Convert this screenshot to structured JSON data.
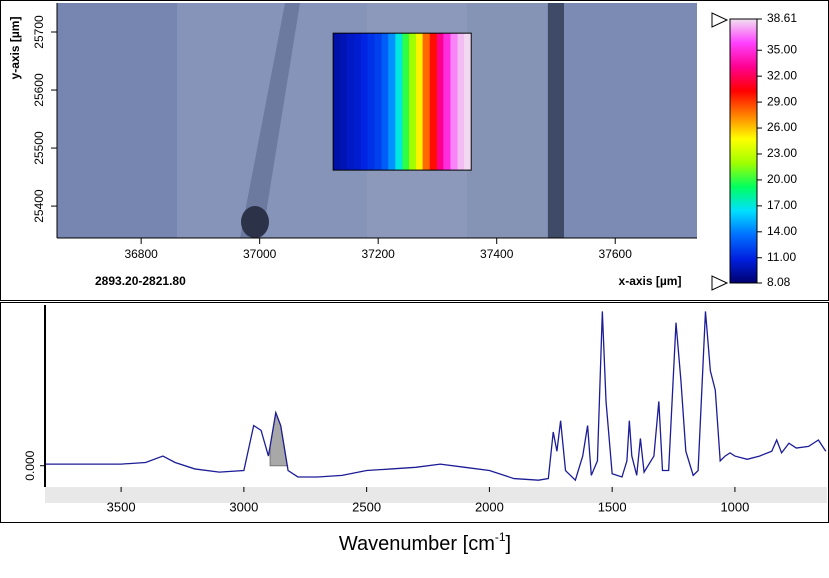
{
  "chart_data": [
    {
      "type": "heatmap",
      "xlabel": "x-axis [µm]",
      "ylabel": "y-axis [µm]",
      "annotation": "2893.20-2821.80",
      "xlim": [
        36658,
        37738
      ],
      "xticks": [
        36800,
        37000,
        37200,
        37400,
        37600
      ],
      "ylim": [
        25345,
        25750
      ],
      "yticks": [
        25400,
        25500,
        25600,
        25700
      ],
      "x_edges": [
        37124,
        37136,
        37147,
        37159,
        37171,
        37182,
        37194,
        37206,
        37217,
        37229,
        37241,
        37252,
        37264,
        37275,
        37287,
        37299,
        37310,
        37322,
        37334,
        37345,
        37357
      ],
      "y_range": [
        25462,
        25698
      ],
      "values": [
        9.5,
        9.8,
        10.2,
        10.5,
        11,
        11.5,
        12,
        13,
        14.5,
        17,
        20,
        22,
        25,
        28,
        30,
        33,
        35,
        37,
        38,
        38.5
      ],
      "colorbar": {
        "lim": [
          8.08,
          38.61
        ],
        "ticks": [
          8.08,
          {
            "value": 11,
            "label": "11.00"
          },
          {
            "value": 14,
            "label": "14.00"
          },
          {
            "value": 17,
            "label": "17.00"
          },
          {
            "value": 20,
            "label": "20.00"
          },
          {
            "value": 23,
            "label": "23.00"
          },
          {
            "value": 26,
            "label": "26.00"
          },
          {
            "value": 29,
            "label": "29.00"
          },
          {
            "value": 32,
            "label": "32.00"
          },
          {
            "value": 35,
            "label": "35.00"
          },
          38.61
        ],
        "colors": [
          "#00006e",
          "#0020e0",
          "#0070ff",
          "#00e0ff",
          "#00ff60",
          "#a0ff00",
          "#ffff00",
          "#ff8000",
          "#ff0000",
          "#ff0090",
          "#ff40ff",
          "#f0e0f0"
        ]
      }
    },
    {
      "type": "line",
      "xlabel": "Wavenumber [cm",
      "xlabel_sup": "-1",
      "xlabel_close": "]",
      "xlim": [
        3810,
        625
      ],
      "xticks": [
        3500,
        3000,
        2500,
        2000,
        1500,
        1000
      ],
      "ylim": [
        -0.12,
        1.0
      ],
      "yticks": [
        {
          "value": 0,
          "label": "0.000"
        }
      ],
      "highlight": [
        2893.2,
        2821.8
      ],
      "x": [
        3810,
        3500,
        3400,
        3330,
        3280,
        3200,
        3100,
        3000,
        2960,
        2930,
        2900,
        2870,
        2850,
        2820,
        2780,
        2700,
        2600,
        2500,
        2400,
        2300,
        2200,
        2100,
        2000,
        1900,
        1800,
        1760,
        1740,
        1725,
        1710,
        1690,
        1650,
        1620,
        1600,
        1585,
        1560,
        1540,
        1525,
        1500,
        1460,
        1440,
        1430,
        1420,
        1400,
        1385,
        1370,
        1330,
        1310,
        1295,
        1270,
        1240,
        1220,
        1200,
        1170,
        1150,
        1120,
        1100,
        1080,
        1060,
        1040,
        1020,
        1000,
        950,
        900,
        850,
        830,
        810,
        780,
        750,
        700,
        660,
        630
      ],
      "series": [
        {
          "color": "#1c1c96",
          "values": [
            0.01,
            0.01,
            0.02,
            0.06,
            0.02,
            -0.02,
            -0.04,
            -0.03,
            0.25,
            0.22,
            0.06,
            0.33,
            0.25,
            -0.03,
            -0.07,
            -0.07,
            -0.06,
            -0.03,
            -0.02,
            -0.01,
            0.01,
            -0.01,
            -0.03,
            -0.08,
            -0.09,
            -0.08,
            0.21,
            0.09,
            0.28,
            -0.03,
            -0.09,
            0.06,
            0.25,
            -0.06,
            0.03,
            0.96,
            0.4,
            -0.05,
            -0.07,
            0.03,
            0.28,
            0.06,
            -0.06,
            0.17,
            -0.04,
            0.06,
            0.4,
            -0.03,
            -0.03,
            0.89,
            0.53,
            0.09,
            -0.06,
            -0.03,
            0.96,
            0.59,
            0.47,
            0.03,
            0.06,
            0.08,
            0.06,
            0.04,
            0.06,
            0.09,
            0.16,
            0.08,
            0.14,
            0.11,
            0.12,
            0.16,
            0.09
          ]
        }
      ]
    }
  ]
}
